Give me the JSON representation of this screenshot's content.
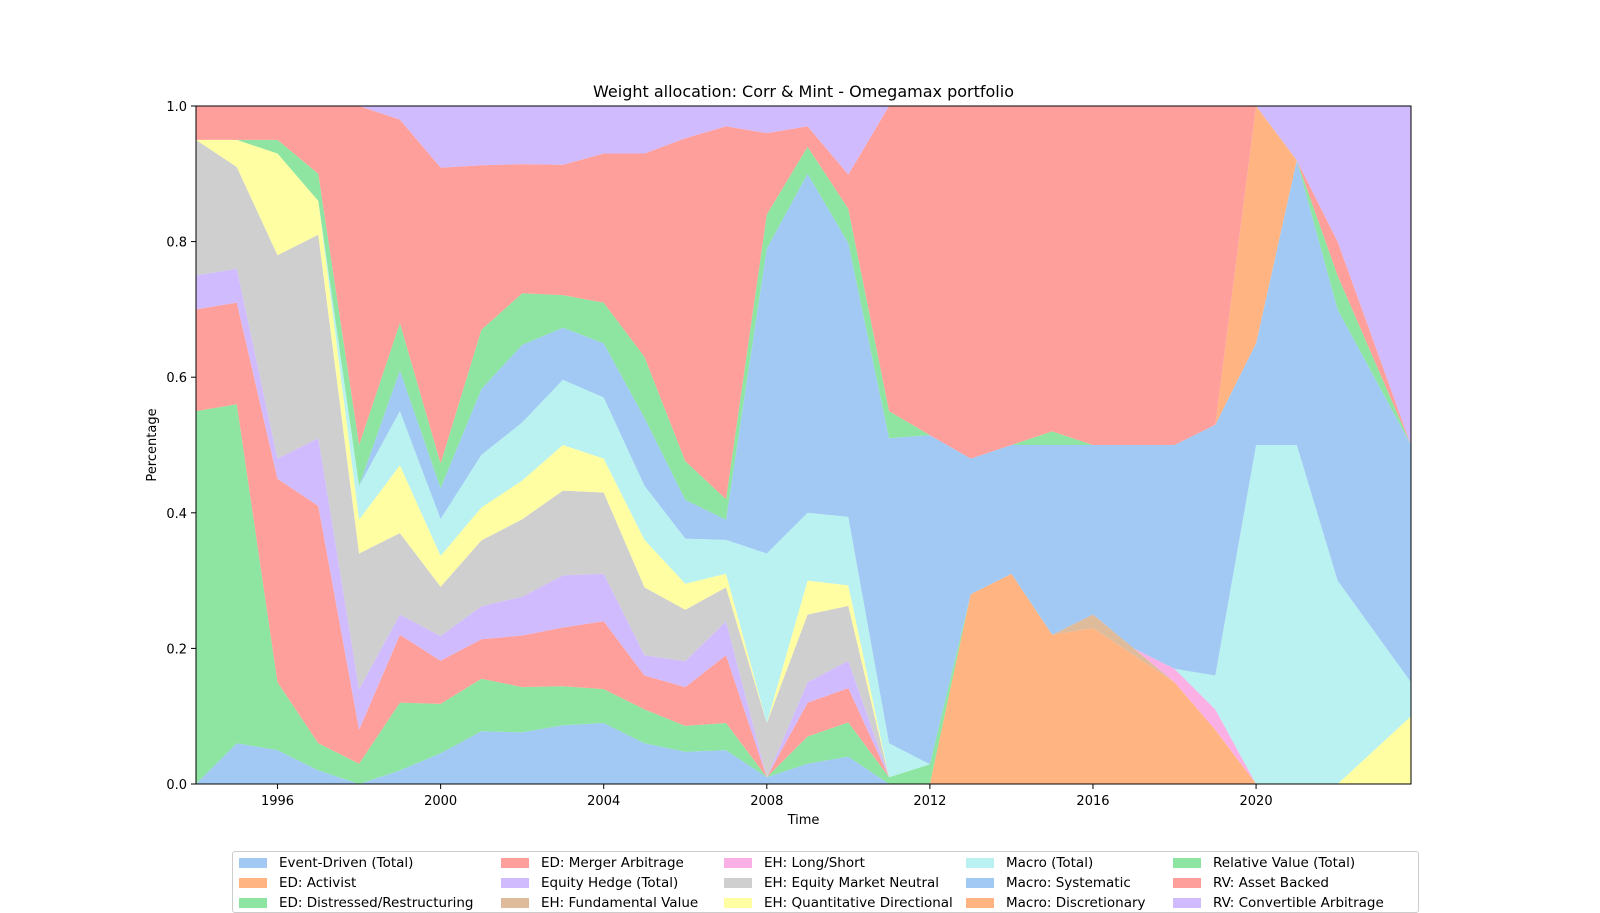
{
  "chart_data": {
    "type": "area",
    "title": "Weight allocation: Corr & Mint - Omegamax portfolio",
    "xlabel": "Time",
    "ylabel": "Percentage",
    "xlim": [
      1994.0,
      2023.8
    ],
    "ylim": [
      0.0,
      1.0
    ],
    "x_ticks": [
      "1996",
      "2000",
      "2004",
      "2008",
      "2012",
      "2016",
      "2020"
    ],
    "y_ticks": [
      "0.0",
      "0.2",
      "0.4",
      "0.6",
      "0.8",
      "1.0"
    ],
    "legend_position": "bottom",
    "x": [
      1994,
      1995,
      1996,
      1997,
      1998,
      1999,
      2000,
      2001,
      2002,
      2003,
      2004,
      2005,
      2006,
      2007,
      2008,
      2009,
      2010,
      2011,
      2012,
      2013,
      2014,
      2015,
      2016,
      2017,
      2018,
      2019,
      2020,
      2021,
      2022,
      2023
    ],
    "series": [
      {
        "name": "Event-Driven (Total)",
        "color": "#a1c9f4",
        "values": [
          0.0,
          0.06,
          0.05,
          0.02,
          0.0,
          0.02,
          0.05,
          0.08,
          0.08,
          0.09,
          0.09,
          0.06,
          0.05,
          0.05,
          0.01,
          0.03,
          0.04,
          0.0,
          0.0,
          0.0,
          0.0,
          0.0,
          0.0,
          0.0,
          0.0,
          0.0,
          0.0,
          0.0,
          0.0,
          0.0
        ]
      },
      {
        "name": "ED: Activist",
        "color": "#ffb482",
        "values": [
          0,
          0,
          0,
          0,
          0,
          0,
          0,
          0,
          0,
          0,
          0,
          0,
          0,
          0,
          0,
          0,
          0,
          0,
          0,
          0.28,
          0.31,
          0.22,
          0.23,
          0.19,
          0.15,
          0.08,
          0.0,
          0.0,
          0.0,
          0.0
        ]
      },
      {
        "name": "ED: Distressed/Restructuring",
        "color": "#8de5a1",
        "values": [
          0.55,
          0.5,
          0.1,
          0.04,
          0.03,
          0.1,
          0.08,
          0.08,
          0.07,
          0.06,
          0.05,
          0.05,
          0.04,
          0.04,
          0.0,
          0.04,
          0.05,
          0.01,
          0.03,
          0.0,
          0.0,
          0.0,
          0.0,
          0.0,
          0.0,
          0.0,
          0.0,
          0.0,
          0.0,
          0.0
        ]
      },
      {
        "name": "ED: Merger Arbitrage",
        "color": "#ff9f9b",
        "values": [
          0.15,
          0.15,
          0.3,
          0.35,
          0.05,
          0.1,
          0.07,
          0.06,
          0.08,
          0.09,
          0.1,
          0.05,
          0.06,
          0.1,
          0.0,
          0.05,
          0.05,
          0.0,
          0.0,
          0.0,
          0.0,
          0.0,
          0.0,
          0.0,
          0.0,
          0.0,
          0.0,
          0.0,
          0.0,
          0.0
        ]
      },
      {
        "name": "Equity Hedge (Total)",
        "color": "#d0bbff",
        "values": [
          0.05,
          0.05,
          0.03,
          0.1,
          0.06,
          0.03,
          0.04,
          0.05,
          0.06,
          0.08,
          0.07,
          0.03,
          0.04,
          0.05,
          0.0,
          0.03,
          0.04,
          0.0,
          0.0,
          0.0,
          0.0,
          0.0,
          0.0,
          0.0,
          0.0,
          0.0,
          0.0,
          0.0,
          0.0,
          0.0
        ]
      },
      {
        "name": "EH: Fundamental Value",
        "color": "#debb9b",
        "values": [
          0,
          0,
          0,
          0,
          0,
          0,
          0,
          0,
          0,
          0,
          0,
          0,
          0,
          0,
          0,
          0,
          0,
          0,
          0,
          0,
          0,
          0,
          0.02,
          0.01,
          0,
          0,
          0,
          0,
          0,
          0
        ]
      },
      {
        "name": "EH: Long/Short",
        "color": "#fab0e4",
        "values": [
          0,
          0,
          0,
          0,
          0,
          0,
          0,
          0,
          0,
          0,
          0,
          0,
          0,
          0,
          0,
          0,
          0,
          0,
          0,
          0,
          0,
          0,
          0,
          0,
          0.02,
          0.03,
          0,
          0,
          0,
          0
        ]
      },
      {
        "name": "EH: Equity Market Neutral",
        "color": "#cfcfcf",
        "values": [
          0.2,
          0.15,
          0.3,
          0.3,
          0.2,
          0.12,
          0.08,
          0.1,
          0.12,
          0.13,
          0.12,
          0.1,
          0.08,
          0.05,
          0.08,
          0.1,
          0.08,
          0.0,
          0.0,
          0.0,
          0.0,
          0.0,
          0.0,
          0.0,
          0.0,
          0.0,
          0.0,
          0.0,
          0.0,
          0.0
        ]
      },
      {
        "name": "EH: Quantitative Directional",
        "color": "#fffea3",
        "values": [
          0.0,
          0.04,
          0.15,
          0.05,
          0.05,
          0.1,
          0.05,
          0.05,
          0.06,
          0.07,
          0.05,
          0.07,
          0.04,
          0.02,
          0.0,
          0.05,
          0.03,
          0.0,
          0.0,
          0.0,
          0.0,
          0.0,
          0.0,
          0.0,
          0.0,
          0.0,
          0.0,
          0.0,
          0.0,
          0.1
        ]
      },
      {
        "name": "Macro (Total)",
        "color": "#b9f2f0",
        "values": [
          0.0,
          0.0,
          0.0,
          0.0,
          0.05,
          0.08,
          0.06,
          0.08,
          0.09,
          0.1,
          0.09,
          0.08,
          0.07,
          0.05,
          0.25,
          0.1,
          0.1,
          0.05,
          0.0,
          0.0,
          0.0,
          0.0,
          0.0,
          0.0,
          0.0,
          0.05,
          0.5,
          0.5,
          0.3,
          0.05
        ]
      },
      {
        "name": "Macro: Systematic",
        "color": "#a1c9f4",
        "values": [
          0.0,
          0.0,
          0.0,
          0.0,
          0.0,
          0.06,
          0.05,
          0.1,
          0.12,
          0.08,
          0.08,
          0.1,
          0.06,
          0.03,
          0.45,
          0.5,
          0.4,
          0.45,
          0.5,
          0.2,
          0.19,
          0.28,
          0.25,
          0.3,
          0.33,
          0.37,
          0.15,
          0.42,
          0.4,
          0.35
        ]
      },
      {
        "name": "Macro: Discretionary",
        "color": "#ffb482",
        "values": [
          0,
          0,
          0,
          0,
          0,
          0,
          0,
          0,
          0,
          0,
          0,
          0,
          0,
          0,
          0,
          0,
          0,
          0,
          0,
          0,
          0,
          0,
          0,
          0,
          0,
          0,
          0.35,
          0.0,
          0.0,
          0.0
        ]
      },
      {
        "name": "Relative Value (Total)",
        "color": "#8de5a1",
        "values": [
          0.0,
          0.0,
          0.02,
          0.04,
          0.06,
          0.07,
          0.04,
          0.09,
          0.08,
          0.05,
          0.06,
          0.09,
          0.06,
          0.03,
          0.05,
          0.04,
          0.05,
          0.04,
          0.0,
          0.0,
          0.0,
          0.02,
          0.0,
          0.0,
          0.0,
          0.0,
          0.0,
          0.0,
          0.05,
          0.0
        ]
      },
      {
        "name": "RV: Asset Backed",
        "color": "#ff9f9b",
        "values": [
          0.05,
          0.05,
          0.05,
          0.1,
          0.5,
          0.3,
          0.48,
          0.25,
          0.2,
          0.2,
          0.22,
          0.3,
          0.5,
          0.55,
          0.12,
          0.03,
          0.05,
          0.45,
          0.5,
          0.52,
          0.5,
          0.48,
          0.5,
          0.5,
          0.5,
          0.47,
          0.0,
          0.0,
          0.05,
          0.0
        ]
      },
      {
        "name": "RV: Convertible Arbitrage",
        "color": "#d0bbff",
        "values": [
          0.0,
          0.0,
          0.0,
          0.0,
          0.0,
          0.02,
          0.1,
          0.09,
          0.09,
          0.09,
          0.07,
          0.07,
          0.05,
          0.03,
          0.04,
          0.03,
          0.1,
          0.0,
          0.0,
          0.0,
          0.0,
          0.0,
          0.0,
          0.0,
          0.0,
          0.0,
          0.0,
          0.08,
          0.2,
          0.5
        ]
      }
    ]
  }
}
